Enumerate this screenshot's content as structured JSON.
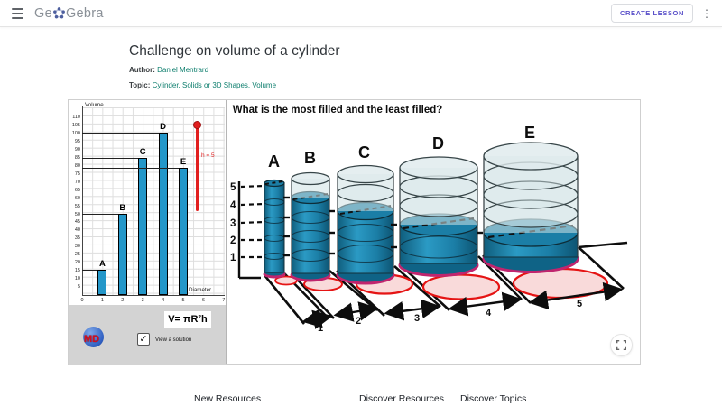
{
  "header": {
    "logo_prefix": "Ge",
    "logo_suffix": "Gebra",
    "create_lesson_label": "CREATE LESSON",
    "kebab_glyph": "⋮"
  },
  "page": {
    "title": "Challenge on volume of a cylinder",
    "author_label": "Author:",
    "author": "Daniel Mentrard",
    "topic_label": "Topic:",
    "topics_display": "Cylinder, Solids or 3D Shapes, Volume"
  },
  "chart_data": {
    "type": "bar",
    "title": "Volume",
    "xlabel": "Diameter",
    "categories": [
      1,
      2,
      3,
      4,
      5
    ],
    "bar_labels": [
      "A",
      "B",
      "C",
      "D",
      "E"
    ],
    "values": [
      15.7,
      50.3,
      84.8,
      100.5,
      78.5
    ],
    "ylim": [
      0,
      110
    ],
    "ytick_step": 5,
    "xlim": [
      0,
      7
    ],
    "bar_color": "#2497c9",
    "grid": true,
    "slider_label": "h = 5",
    "slider_color": "#e21f1f"
  },
  "controls": {
    "formula": "V= πR²h",
    "checkbox_label": "View a solution",
    "checkbox_checked_glyph": "✓",
    "logo_text": "MD"
  },
  "scene": {
    "question": "What is the most filled and the least filled?",
    "labels": [
      "A",
      "B",
      "C",
      "D",
      "E"
    ],
    "fill_levels": [
      5,
      4,
      3,
      2,
      1
    ],
    "diameters": [
      "1",
      "2",
      "3",
      "4",
      "5"
    ],
    "scale": [
      "5",
      "4",
      "3",
      "2",
      "1"
    ],
    "fill_color": "#1b7ea6",
    "glass_color": "#cfe1e4",
    "base_ring_color": "#c0256e",
    "ground_ellipse_stroke": "#e51414"
  },
  "footer": {
    "links": [
      "New Resources",
      "Discover Resources",
      "Discover Topics"
    ]
  },
  "colors": {
    "link_teal": "#0b7d6c",
    "button_purple": "#5b51c9",
    "bar_blue": "#2497c9",
    "slider_red": "#e21f1f"
  }
}
